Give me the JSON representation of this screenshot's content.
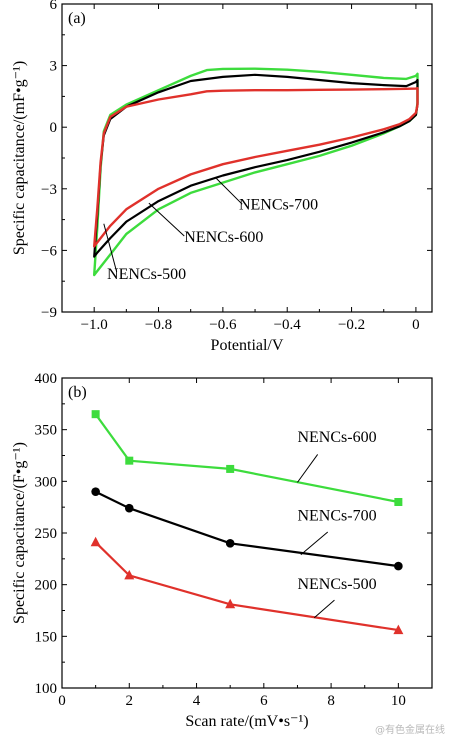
{
  "watermark": "@有色金属在线",
  "chart_data": [
    {
      "type": "line",
      "panel_label": "(a)",
      "xlabel": "Potential/V",
      "ylabel": "Specific capacitance/(mF•g⁻¹)",
      "xlim": [
        -1.1,
        0.05
      ],
      "ylim": [
        -9,
        6
      ],
      "xticks": [
        -1.0,
        -0.8,
        -0.6,
        -0.4,
        -0.2,
        0
      ],
      "xtick_labels": [
        "−1.0",
        "−0.8",
        "−0.6",
        "−0.4",
        "−0.2",
        "0"
      ],
      "yticks": [
        -9,
        -6,
        -3,
        0,
        3,
        6
      ],
      "ytick_labels": [
        "−9",
        "−6",
        "−3",
        "0",
        "3",
        "6"
      ],
      "grid": false,
      "series": [
        {
          "name": "NENCs-500",
          "color": "#3ddc3d",
          "points": [
            [
              -1.0,
              -7.2
            ],
            [
              -0.99,
              -4.8
            ],
            [
              -0.98,
              -2.0
            ],
            [
              -0.97,
              -0.2
            ],
            [
              -0.95,
              0.6
            ],
            [
              -0.9,
              1.1
            ],
            [
              -0.8,
              1.8
            ],
            [
              -0.7,
              2.5
            ],
            [
              -0.65,
              2.78
            ],
            [
              -0.6,
              2.84
            ],
            [
              -0.5,
              2.85
            ],
            [
              -0.4,
              2.8
            ],
            [
              -0.3,
              2.7
            ],
            [
              -0.2,
              2.55
            ],
            [
              -0.1,
              2.4
            ],
            [
              -0.03,
              2.35
            ],
            [
              0,
              2.5
            ],
            [
              0.005,
              2.6
            ],
            [
              0.005,
              1.2
            ],
            [
              0,
              0.6
            ],
            [
              -0.02,
              0.3
            ],
            [
              -0.05,
              0.05
            ],
            [
              -0.1,
              -0.3
            ],
            [
              -0.2,
              -0.9
            ],
            [
              -0.3,
              -1.4
            ],
            [
              -0.4,
              -1.8
            ],
            [
              -0.5,
              -2.2
            ],
            [
              -0.6,
              -2.7
            ],
            [
              -0.7,
              -3.2
            ],
            [
              -0.8,
              -4.0
            ],
            [
              -0.9,
              -5.2
            ],
            [
              -0.95,
              -6.2
            ],
            [
              -0.99,
              -7.0
            ],
            [
              -1.0,
              -7.2
            ]
          ],
          "label_text": "NENCs-500",
          "label_at": [
            -0.96,
            -7.4
          ]
        },
        {
          "name": "NENCs-700",
          "color": "#000000",
          "points": [
            [
              -1.0,
              -6.3
            ],
            [
              -0.99,
              -4.2
            ],
            [
              -0.98,
              -1.8
            ],
            [
              -0.97,
              -0.4
            ],
            [
              -0.95,
              0.4
            ],
            [
              -0.9,
              1.0
            ],
            [
              -0.8,
              1.7
            ],
            [
              -0.7,
              2.25
            ],
            [
              -0.6,
              2.45
            ],
            [
              -0.5,
              2.55
            ],
            [
              -0.4,
              2.45
            ],
            [
              -0.3,
              2.3
            ],
            [
              -0.2,
              2.15
            ],
            [
              -0.1,
              2.05
            ],
            [
              -0.03,
              2.0
            ],
            [
              0,
              2.2
            ],
            [
              0.005,
              2.3
            ],
            [
              0.005,
              1.1
            ],
            [
              0,
              0.6
            ],
            [
              -0.02,
              0.3
            ],
            [
              -0.05,
              0.05
            ],
            [
              -0.1,
              -0.25
            ],
            [
              -0.2,
              -0.75
            ],
            [
              -0.3,
              -1.2
            ],
            [
              -0.4,
              -1.6
            ],
            [
              -0.5,
              -1.95
            ],
            [
              -0.6,
              -2.35
            ],
            [
              -0.7,
              -2.85
            ],
            [
              -0.8,
              -3.6
            ],
            [
              -0.9,
              -4.6
            ],
            [
              -0.95,
              -5.4
            ],
            [
              -0.99,
              -6.1
            ],
            [
              -1.0,
              -6.3
            ]
          ],
          "label_text": "NENCs-700",
          "label_at": [
            -0.55,
            -4.0
          ]
        },
        {
          "name": "NENCs-600",
          "color": "#e0312b",
          "points": [
            [
              -1.0,
              -5.8
            ],
            [
              -0.99,
              -3.9
            ],
            [
              -0.98,
              -1.7
            ],
            [
              -0.97,
              -0.3
            ],
            [
              -0.95,
              0.5
            ],
            [
              -0.9,
              1.0
            ],
            [
              -0.8,
              1.35
            ],
            [
              -0.7,
              1.6
            ],
            [
              -0.65,
              1.75
            ],
            [
              -0.6,
              1.78
            ],
            [
              -0.5,
              1.8
            ],
            [
              -0.4,
              1.8
            ],
            [
              -0.3,
              1.82
            ],
            [
              -0.2,
              1.83
            ],
            [
              -0.1,
              1.85
            ],
            [
              -0.03,
              1.87
            ],
            [
              0,
              1.88
            ],
            [
              0.005,
              1.9
            ],
            [
              0.005,
              1.1
            ],
            [
              0,
              0.7
            ],
            [
              -0.02,
              0.4
            ],
            [
              -0.05,
              0.15
            ],
            [
              -0.1,
              -0.1
            ],
            [
              -0.2,
              -0.5
            ],
            [
              -0.3,
              -0.85
            ],
            [
              -0.4,
              -1.15
            ],
            [
              -0.5,
              -1.45
            ],
            [
              -0.6,
              -1.8
            ],
            [
              -0.7,
              -2.3
            ],
            [
              -0.8,
              -3.0
            ],
            [
              -0.9,
              -4.0
            ],
            [
              -0.95,
              -4.8
            ],
            [
              -0.99,
              -5.6
            ],
            [
              -1.0,
              -5.8
            ]
          ],
          "label_text": "NENCs-600",
          "label_at": [
            -0.72,
            -5.6
          ]
        }
      ],
      "annotation_leaders": [
        {
          "series": "NENCs-700",
          "from": [
            -0.62,
            -2.5
          ],
          "to": [
            -0.54,
            -3.75
          ]
        },
        {
          "series": "NENCs-600",
          "from": [
            -0.83,
            -3.7
          ],
          "to": [
            -0.72,
            -5.3
          ]
        },
        {
          "series": "NENCs-500",
          "from": [
            -0.97,
            -4.7
          ],
          "to": [
            -0.93,
            -7.05
          ]
        }
      ]
    },
    {
      "type": "line",
      "panel_label": "(b)",
      "xlabel": "Scan rate/(mV•s⁻¹)",
      "ylabel": "Specific capacitance/(F•g⁻¹)",
      "xlim": [
        0,
        11
      ],
      "ylim": [
        100,
        400
      ],
      "xticks": [
        0,
        2,
        4,
        6,
        8,
        10
      ],
      "xtick_labels": [
        "0",
        "2",
        "4",
        "6",
        "8",
        "10"
      ],
      "yticks": [
        100,
        150,
        200,
        250,
        300,
        350,
        400
      ],
      "ytick_labels": [
        "100",
        "150",
        "200",
        "250",
        "300",
        "350",
        "400"
      ],
      "grid": false,
      "x": [
        1,
        2,
        5,
        10
      ],
      "series": [
        {
          "name": "NENCs-600",
          "color": "#3ddc3d",
          "marker": "square",
          "values": [
            365,
            320,
            312,
            280
          ],
          "label_text": "NENCs-600"
        },
        {
          "name": "NENCs-700",
          "color": "#000000",
          "marker": "circle",
          "values": [
            290,
            274,
            240,
            218
          ],
          "label_text": "NENCs-700"
        },
        {
          "name": "NENCs-500",
          "color": "#e0312b",
          "marker": "triangle",
          "values": [
            241,
            209,
            181,
            156
          ],
          "label_text": "NENCs-500"
        }
      ],
      "label_positions": [
        {
          "series": "NENCs-600",
          "at": [
            7.0,
            338
          ]
        },
        {
          "series": "NENCs-700",
          "at": [
            7.0,
            262
          ]
        },
        {
          "series": "NENCs-500",
          "at": [
            7.0,
            196
          ]
        }
      ],
      "annotation_leaders": [
        {
          "series": "NENCs-600",
          "from": [
            7.0,
            299
          ],
          "to": [
            7.6,
            326
          ]
        },
        {
          "series": "NENCs-700",
          "from": [
            7.1,
            229
          ],
          "to": [
            7.9,
            251
          ]
        },
        {
          "series": "NENCs-500",
          "from": [
            7.5,
            168
          ],
          "to": [
            8.1,
            185
          ]
        }
      ]
    }
  ]
}
